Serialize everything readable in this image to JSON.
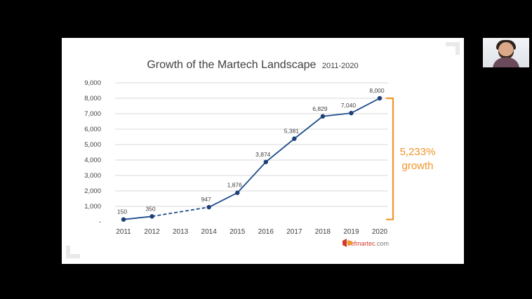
{
  "chart_data": {
    "type": "line",
    "title": "Growth of the Martech Landscape",
    "title_suffix": "2011-2020",
    "categories": [
      "2011",
      "2012",
      "2013",
      "2014",
      "2015",
      "2016",
      "2017",
      "2018",
      "2019",
      "2020"
    ],
    "points": [
      {
        "x": "2011",
        "y": 150,
        "label": "150"
      },
      {
        "x": "2012",
        "y": 350,
        "label": "350"
      },
      {
        "x": "2014",
        "y": 947,
        "label": "947"
      },
      {
        "x": "2015",
        "y": 1876,
        "label": "1,876"
      },
      {
        "x": "2016",
        "y": 3874,
        "label": "3,874"
      },
      {
        "x": "2017",
        "y": 5381,
        "label": "5,381"
      },
      {
        "x": "2018",
        "y": 6829,
        "label": "6,829"
      },
      {
        "x": "2019",
        "y": 7040,
        "label": "7,040"
      },
      {
        "x": "2020",
        "y": 8000,
        "label": "8,000"
      }
    ],
    "dashed_segment": [
      "2012",
      "2014"
    ],
    "ylim": [
      0,
      9000
    ],
    "yticks": [
      {
        "value": 0,
        "label": "-"
      },
      {
        "value": 1000,
        "label": "1,000"
      },
      {
        "value": 2000,
        "label": "2,000"
      },
      {
        "value": 3000,
        "label": "3,000"
      },
      {
        "value": 4000,
        "label": "4,000"
      },
      {
        "value": 5000,
        "label": "5,000"
      },
      {
        "value": 6000,
        "label": "6,000"
      },
      {
        "value": 7000,
        "label": "7,000"
      },
      {
        "value": 8000,
        "label": "8,000"
      },
      {
        "value": 9000,
        "label": "9,000"
      }
    ],
    "grid": true,
    "annotation": {
      "line1": "5,233%",
      "line2": "growth",
      "from": 150,
      "to": 8000
    },
    "colors": {
      "line": "#1f4e8c",
      "marker": "#1f3f78",
      "grid": "#d9d9d9",
      "annotation": "#f0962a",
      "title": "#404040",
      "tick": "#404040"
    }
  },
  "logo": {
    "brand": "chiefmartec",
    "tld": ".com"
  }
}
